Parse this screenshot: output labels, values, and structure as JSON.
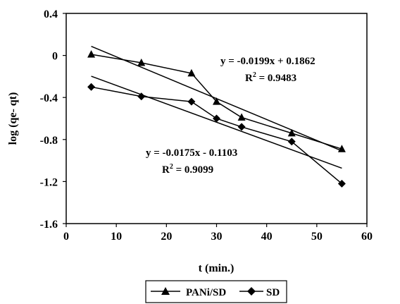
{
  "chart_data": {
    "type": "scatter",
    "xlabel": "t (min.)",
    "ylabel": "log (qe- qt)",
    "xlim": [
      0,
      60
    ],
    "ylim": [
      -1.6,
      0.4
    ],
    "xticks": [
      0,
      10,
      20,
      30,
      40,
      50,
      60
    ],
    "yticks": [
      0.4,
      0,
      -0.4,
      -0.8,
      -1.2,
      -1.6
    ],
    "ytick_labels": [
      "0.4",
      "0",
      "-0.4",
      "-0.8",
      "-1.2",
      "-1.6"
    ],
    "grid": false,
    "legend_position": "bottom",
    "series": [
      {
        "name": "PANi/SD",
        "marker": "triangle",
        "x": [
          5,
          15,
          25,
          30,
          35,
          45,
          55
        ],
        "y": [
          0.01,
          -0.07,
          -0.17,
          -0.44,
          -0.59,
          -0.74,
          -0.89
        ],
        "trendline": {
          "slope": -0.0199,
          "intercept": 0.1862,
          "x_range": [
            5,
            55
          ]
        }
      },
      {
        "name": "SD",
        "marker": "diamond",
        "x": [
          5,
          15,
          25,
          30,
          35,
          45,
          55
        ],
        "y": [
          -0.3,
          -0.39,
          -0.44,
          -0.6,
          -0.68,
          -0.82,
          -1.22
        ],
        "trendline": {
          "slope": -0.0175,
          "intercept": -0.1103,
          "x_range": [
            5,
            55
          ]
        }
      }
    ],
    "annotations": [
      {
        "equation": "y = -0.0199x + 0.1862",
        "r2_label": "R",
        "r2_sup": "2",
        "r2_value": " = 0.9483"
      },
      {
        "equation": "y = -0.0175x - 0.1103",
        "r2_label": "R",
        "r2_sup": "2",
        "r2_value": " = 0.9099"
      }
    ]
  }
}
